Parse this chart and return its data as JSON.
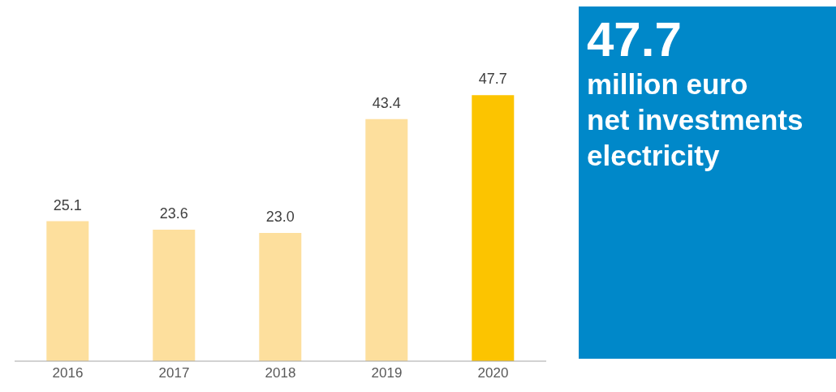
{
  "chart_data": [
    {
      "type": "bar",
      "categories": [
        "2016",
        "2017",
        "2018",
        "2019",
        "2020"
      ],
      "values": [
        25.1,
        23.6,
        23.0,
        43.4,
        47.7
      ],
      "colors": [
        "#fddf9d",
        "#fddf9d",
        "#fddf9d",
        "#fddf9d",
        "#fcc400"
      ],
      "value_labels": [
        "25.1",
        "23.6",
        "23.0",
        "43.4",
        "47.7"
      ],
      "grid": false,
      "tick_labels": "x"
    },
    {
      "type": "other",
      "title": "47.7",
      "annotations": [
        "million euro",
        "net investments",
        "electricity"
      ]
    }
  ]
}
